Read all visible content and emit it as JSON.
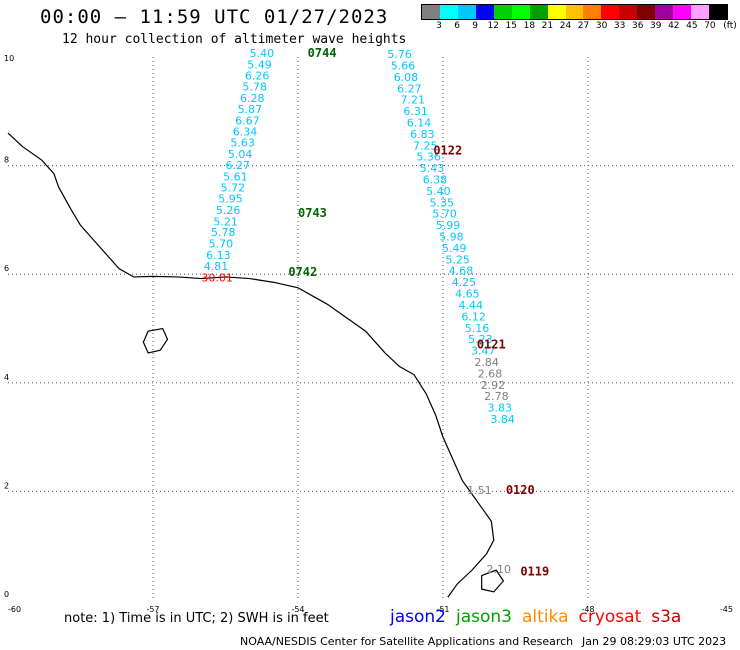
{
  "header": {
    "title": "00:00 – 11:59 UTC 01/27/2023",
    "subtitle": "12 hour collection of altimeter wave heights"
  },
  "legend": {
    "colors": [
      "#808080",
      "#00ffff",
      "#00c8ff",
      "#0000ff",
      "#00d000",
      "#00ff00",
      "#00a000",
      "#ffff00",
      "#ffc000",
      "#ff8000",
      "#ff0000",
      "#c80000",
      "#800000",
      "#a000a0",
      "#ff00ff",
      "#ffa0ff",
      "#000000"
    ],
    "labels": [
      "3",
      "6",
      "9",
      "12",
      "15",
      "18",
      "21",
      "24",
      "27",
      "30",
      "33",
      "36",
      "39",
      "42",
      "45",
      "70"
    ],
    "unit": "(ft)"
  },
  "map": {
    "x_ticks": [
      "-60",
      "-57",
      "-54",
      "-51",
      "-48",
      "-45"
    ],
    "y_ticks": [
      "10",
      "8",
      "6",
      "4",
      "2",
      "0"
    ],
    "x_range": [
      -60,
      -45
    ],
    "y_range": [
      0,
      10
    ],
    "passes": [
      {
        "time": "0744",
        "time_color": "#006400",
        "lon": -53.8,
        "lat": 10.0
      },
      {
        "time": "0743",
        "time_color": "#006400",
        "lon": -54.0,
        "lat": 7.05
      },
      {
        "time": "0742",
        "time_color": "#006400",
        "lon": -54.2,
        "lat": 5.97
      },
      {
        "time": "0122",
        "time_color": "#800000",
        "lon": -51.2,
        "lat": 8.2
      },
      {
        "time": "0121",
        "time_color": "#800000",
        "lon": -50.3,
        "lat": 4.63
      },
      {
        "time": "0120",
        "time_color": "#800000",
        "lon": -49.7,
        "lat": 1.95
      },
      {
        "time": "0119",
        "time_color": "#800000",
        "lon": -49.4,
        "lat": 0.45
      }
    ],
    "track_a": {
      "color": "#00c8ff",
      "points": [
        {
          "v": "5.40",
          "lon": -55.0,
          "lat": 10.0
        },
        {
          "v": "5.49",
          "lon": -55.05,
          "lat": 9.79
        },
        {
          "v": "6.26",
          "lon": -55.1,
          "lat": 9.59
        },
        {
          "v": "5.78",
          "lon": -55.15,
          "lat": 9.38
        },
        {
          "v": "6.28",
          "lon": -55.2,
          "lat": 9.17
        },
        {
          "v": "5.87",
          "lon": -55.25,
          "lat": 8.97
        },
        {
          "v": "6.67",
          "lon": -55.3,
          "lat": 8.76
        },
        {
          "v": "6.34",
          "lon": -55.35,
          "lat": 8.55
        },
        {
          "v": "5.63",
          "lon": -55.4,
          "lat": 8.35
        },
        {
          "v": "5.04",
          "lon": -55.45,
          "lat": 8.14
        },
        {
          "v": "6.27",
          "lon": -55.5,
          "lat": 7.94
        },
        {
          "v": "5.61",
          "lon": -55.55,
          "lat": 7.73
        },
        {
          "v": "5.72",
          "lon": -55.6,
          "lat": 7.52
        },
        {
          "v": "5.95",
          "lon": -55.65,
          "lat": 7.32
        },
        {
          "v": "5.26",
          "lon": -55.7,
          "lat": 7.11
        },
        {
          "v": "5.21",
          "lon": -55.75,
          "lat": 6.9
        },
        {
          "v": "5.78",
          "lon": -55.8,
          "lat": 6.7
        },
        {
          "v": "5.70",
          "lon": -55.85,
          "lat": 6.49
        },
        {
          "v": "6.13",
          "lon": -55.9,
          "lat": 6.28
        },
        {
          "v": "4.81",
          "lon": -55.95,
          "lat": 6.08
        },
        {
          "v": "30.01",
          "lon": -56.0,
          "lat": 5.87,
          "color": "#ff0000"
        }
      ]
    },
    "track_b": {
      "color": "#00c8ff",
      "points": [
        {
          "v": "5.76",
          "lon": -52.15,
          "lat": 9.98
        },
        {
          "v": "5.66",
          "lon": -52.08,
          "lat": 9.77
        },
        {
          "v": "6.08",
          "lon": -52.02,
          "lat": 9.56
        },
        {
          "v": "6.27",
          "lon": -51.95,
          "lat": 9.35
        },
        {
          "v": "7.21",
          "lon": -51.88,
          "lat": 9.14
        },
        {
          "v": "6.31",
          "lon": -51.82,
          "lat": 8.93
        },
        {
          "v": "6.14",
          "lon": -51.75,
          "lat": 8.72
        },
        {
          "v": "6.83",
          "lon": -51.68,
          "lat": 8.51
        },
        {
          "v": "7.25",
          "lon": -51.62,
          "lat": 8.3
        },
        {
          "v": "5.36",
          "lon": -51.55,
          "lat": 8.09
        },
        {
          "v": "5.43",
          "lon": -51.48,
          "lat": 7.88
        },
        {
          "v": "6.38",
          "lon": -51.42,
          "lat": 7.67
        },
        {
          "v": "5.40",
          "lon": -51.35,
          "lat": 7.46
        },
        {
          "v": "5.35",
          "lon": -51.28,
          "lat": 7.25
        },
        {
          "v": "5.70",
          "lon": -51.22,
          "lat": 7.04
        },
        {
          "v": "5.99",
          "lon": -51.15,
          "lat": 6.83
        },
        {
          "v": "5.98",
          "lon": -51.08,
          "lat": 6.62
        },
        {
          "v": "5.49",
          "lon": -51.02,
          "lat": 6.41
        },
        {
          "v": "5.25",
          "lon": -50.95,
          "lat": 6.2
        },
        {
          "v": "4.68",
          "lon": -50.88,
          "lat": 5.99
        },
        {
          "v": "4.25",
          "lon": -50.82,
          "lat": 5.78
        },
        {
          "v": "4.65",
          "lon": -50.75,
          "lat": 5.57
        },
        {
          "v": "4.44",
          "lon": -50.68,
          "lat": 5.36
        },
        {
          "v": "6.12",
          "lon": -50.62,
          "lat": 5.15
        },
        {
          "v": "5.16",
          "lon": -50.55,
          "lat": 4.94
        },
        {
          "v": "5.23",
          "lon": -50.48,
          "lat": 4.73
        },
        {
          "v": "3.47",
          "lon": -50.42,
          "lat": 4.52
        },
        {
          "v": "2.84",
          "lon": -50.35,
          "lat": 4.31,
          "color": "#808080"
        },
        {
          "v": "2.68",
          "lon": -50.28,
          "lat": 4.1,
          "color": "#808080"
        },
        {
          "v": "2.92",
          "lon": -50.22,
          "lat": 3.89,
          "color": "#808080"
        },
        {
          "v": "2.78",
          "lon": -50.15,
          "lat": 3.68,
          "color": "#808080"
        },
        {
          "v": "3.83",
          "lon": -50.08,
          "lat": 3.47
        },
        {
          "v": "3.84",
          "lon": -50.02,
          "lat": 3.26
        },
        {
          "v": "1.51",
          "lon": -50.5,
          "lat": 1.95,
          "color": "#808080"
        },
        {
          "v": "2.10",
          "lon": -50.1,
          "lat": 0.5,
          "color": "#808080"
        }
      ]
    }
  },
  "footer": {
    "note": "note: 1) Time is in UTC; 2) SWH is in feet",
    "missions": [
      {
        "name": "jason2",
        "color": "#0000ff"
      },
      {
        "name": "jason3",
        "color": "#00a000"
      },
      {
        "name": "altika",
        "color": "#ff8c00"
      },
      {
        "name": "cryosat",
        "color": "#ff0000"
      },
      {
        "name": "s3a",
        "color": "#c80000"
      }
    ],
    "credit": "NOAA/NESDIS Center for Satellite Applications and Research",
    "timestamp": "Jan 29 08:29:03 UTC 2023"
  }
}
